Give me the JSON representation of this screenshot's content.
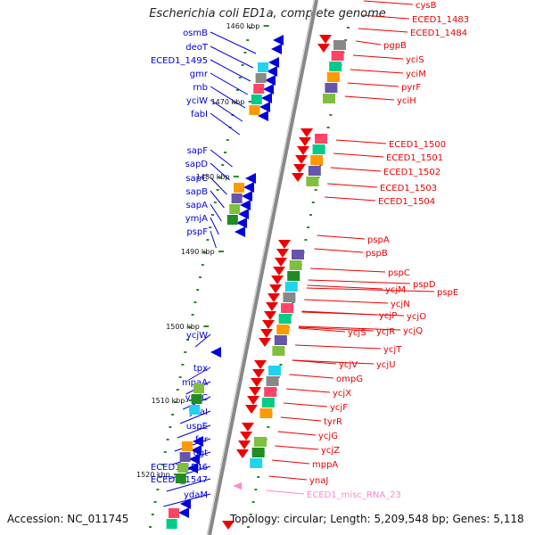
{
  "title": "Escherichia coli ED1a, complete genome",
  "accession": "Accession: NC_011745",
  "topology": "Topology: circular; Length: 5,209,548 bp; Genes: 5,118",
  "colors": {
    "left": "#0000dd",
    "right": "#ee0000",
    "pink": "#ff88cc",
    "backbone": "#888888",
    "tick": "#2a8a2a"
  },
  "left_labels": [
    "osmB",
    "deoT",
    "ECED1_1495",
    "gmr",
    "rnb",
    "yciW",
    "fabI",
    "sapF",
    "sapD",
    "sapC",
    "sapB",
    "sapA",
    "ymjA",
    "pspF",
    "ycjW",
    "tpx",
    "mpaA",
    "ymjC",
    "ynaI",
    "uspE",
    "fnr",
    "ogt",
    "ECED1_1546",
    "ECED1_1547",
    "ydaM"
  ],
  "right_labels": [
    "cysB",
    "ECED1_1483",
    "ECED1_1484",
    "pgpB",
    "yciS",
    "yciM",
    "pyrF",
    "yciH",
    "ECED1_1500",
    "ECED1_1501",
    "ECED1_1502",
    "ECED1_1503",
    "ECED1_1504",
    "pspA",
    "pspB",
    "pspC",
    "pspD",
    "pspE",
    "ycjM",
    "ycjN",
    "ycjP",
    "ycjO",
    "ycjS",
    "ycjR",
    "ycjQ",
    "ycjT",
    "ycjU",
    "ycjV",
    "ompG",
    "ycjX",
    "ycjF",
    "tyrR",
    "ycjG",
    "ycjZ",
    "mppA",
    "ynaJ",
    "ECED1_misc_RNA_23"
  ],
  "kbp_labels": [
    "1460 kbp",
    "1470 kbp",
    "1480 kbp",
    "1490 kbp",
    "1500 kbp",
    "1510 kbp",
    "1520 kbp"
  ]
}
